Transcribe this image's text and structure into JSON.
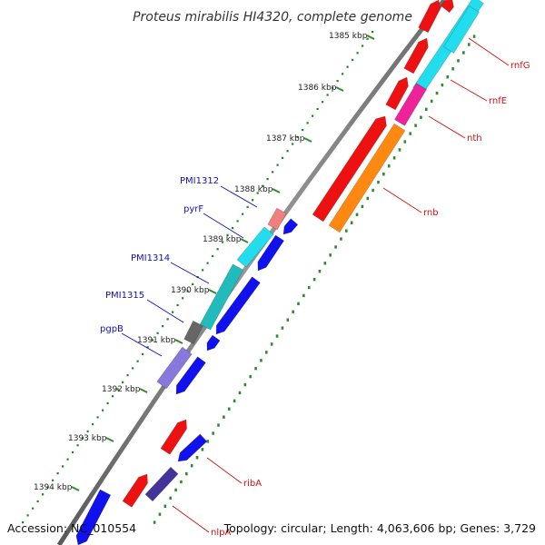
{
  "title": "Proteus mirabilis HI4320, complete genome",
  "footer": {
    "accession": "Accession: NC_010554",
    "stats": "Topology: circular; Length: 4,063,606 bp; Genes: 3,729"
  },
  "colors": {
    "backbone": "#888888",
    "tick_dots": "#1a8a1a",
    "tick_marks": "#2e8b2e",
    "label_left": "#1010c0",
    "label_right": "#d01010",
    "red_gene": "#ee1111",
    "blue_gene": "#1111ee",
    "cyan_gene": "#22ddee",
    "teal_gene": "#22bbbb",
    "magenta_gene": "#ee2299",
    "orange_gene": "#ff8811",
    "salmon_gene": "#f08080",
    "gray_gene": "#666666",
    "lavender_gene": "#8877dd",
    "navy_gene": "#443399"
  },
  "ticks": [
    "1385 kbp",
    "1386 kbp",
    "1387 kbp",
    "1388 kbp",
    "1389 kbp",
    "1390 kbp",
    "1391 kbp",
    "1392 kbp",
    "1393 kbp",
    "1394 kbp"
  ],
  "gene_labels_left": [
    "PMI1312",
    "pyrF",
    "PMI1314",
    "PMI1315",
    "pgpB"
  ],
  "gene_labels_right": [
    "rnfG",
    "rnfE",
    "nth",
    "rnb",
    "ribA",
    "nlpA"
  ],
  "gene_features": [
    {
      "color": "red_gene"
    },
    {
      "color": "red_gene"
    },
    {
      "color": "red_gene"
    },
    {
      "color": "red_gene"
    },
    {
      "color": "red_gene"
    },
    {
      "color": "red_gene"
    },
    {
      "color": "red_gene"
    },
    {
      "color": "cyan_gene"
    },
    {
      "color": "cyan_gene"
    },
    {
      "color": "magenta_gene"
    },
    {
      "color": "orange_gene"
    },
    {
      "color": "salmon_gene"
    },
    {
      "color": "cyan_gene"
    },
    {
      "color": "teal_gene"
    },
    {
      "color": "gray_gene"
    },
    {
      "color": "lavender_gene"
    },
    {
      "color": "blue_gene"
    },
    {
      "color": "blue_gene"
    },
    {
      "color": "blue_gene"
    },
    {
      "color": "blue_gene"
    },
    {
      "color": "blue_gene"
    },
    {
      "color": "blue_gene"
    },
    {
      "color": "navy_gene"
    },
    {
      "color": "blue_gene"
    }
  ]
}
